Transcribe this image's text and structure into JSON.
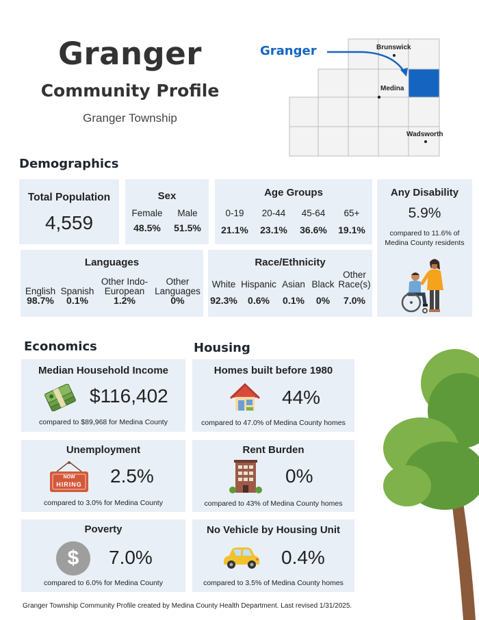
{
  "header": {
    "title": "Granger",
    "subtitle": "Community Profile",
    "township": "Granger Township"
  },
  "map": {
    "callout": "Granger",
    "places": {
      "brunswick": "Brunswick",
      "medina": "Medina",
      "wadsworth": "Wadsworth"
    },
    "highlight_color": "#1565c0"
  },
  "demographics": {
    "heading": "Demographics",
    "total_population": {
      "title": "Total Population",
      "value": "4,559"
    },
    "sex": {
      "title": "Sex",
      "items": [
        {
          "label": "Female",
          "value": "48.5%"
        },
        {
          "label": "Male",
          "value": "51.5%"
        }
      ]
    },
    "age_groups": {
      "title": "Age Groups",
      "items": [
        {
          "label": "0-19",
          "value": "21.1%"
        },
        {
          "label": "20-44",
          "value": "23.1%"
        },
        {
          "label": "45-64",
          "value": "36.6%"
        },
        {
          "label": "65+",
          "value": "19.1%"
        }
      ]
    },
    "disability": {
      "title": "Any Disability",
      "value": "5.9%",
      "compare": "compared to 11.6% of Medina County residents"
    },
    "languages": {
      "title": "Languages",
      "items": [
        {
          "label": "English",
          "value": "98.7%"
        },
        {
          "label": "Spanish",
          "value": "0.1%"
        },
        {
          "label": "Other Indo-European",
          "value": "1.2%"
        },
        {
          "label": "Other Languages",
          "value": "0%"
        }
      ]
    },
    "race": {
      "title": "Race/Ethnicity",
      "items": [
        {
          "label": "White",
          "value": "92.3%"
        },
        {
          "label": "Hispanic",
          "value": "0.6%"
        },
        {
          "label": "Asian",
          "value": "0.1%"
        },
        {
          "label": "Black",
          "value": "0%"
        },
        {
          "label": "Other Race(s)",
          "value": "7.0%"
        }
      ]
    }
  },
  "economics": {
    "heading": "Economics",
    "income": {
      "title": "Median Household Income",
      "value": "$116,402",
      "compare": "compared to $89,968 for Medina County"
    },
    "unemployment": {
      "title": "Unemployment",
      "value": "2.5%",
      "compare": "compared to 3.0% for Medina County",
      "sign_line1": "NOW",
      "sign_line2": "HIRING"
    },
    "poverty": {
      "title": "Poverty",
      "value": "7.0%",
      "compare": "compared to 6.0% for Medina County",
      "coin_symbol": "$"
    }
  },
  "housing": {
    "heading": "Housing",
    "built_before_1980": {
      "title": "Homes built before 1980",
      "value": "44%",
      "compare": "compared to 47.0% of Medina County homes"
    },
    "rent_burden": {
      "title": "Rent Burden",
      "value": "0%",
      "compare": "compared to 43% of Medina County homes"
    },
    "no_vehicle": {
      "title": "No Vehicle by Housing Unit",
      "value": "0.4%",
      "compare": "compared to 3.5% of Medina County homes"
    }
  },
  "footer": "Granger Township Community Profile created by Medina County Health Department. Last revised 1/31/2025."
}
